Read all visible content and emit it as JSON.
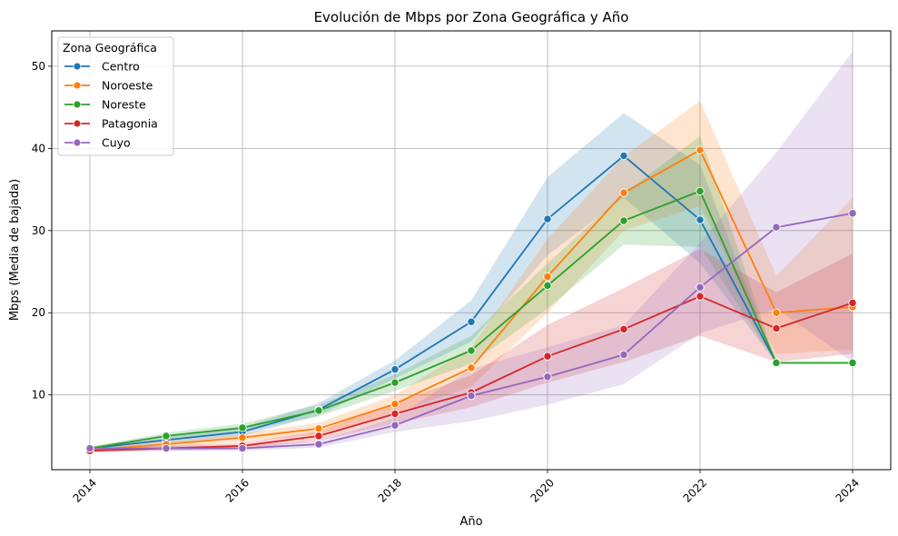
{
  "chart_data": {
    "type": "line",
    "title": "Evolución de Mbps por Zona Geográfica y Año",
    "xlabel": "Año",
    "ylabel": "Mbps (Media de bajada)",
    "xlim": [
      2013.5,
      2024.5
    ],
    "ylim": [
      0.9,
      54.3
    ],
    "xticks": [
      2014,
      2016,
      2018,
      2020,
      2022,
      2024
    ],
    "yticks": [
      10,
      20,
      30,
      40,
      50
    ],
    "grid": true,
    "legend": {
      "title": "Zona Geográfica",
      "placement": "top-left"
    },
    "x": [
      2014,
      2015,
      2016,
      2017,
      2018,
      2019,
      2020,
      2021,
      2022,
      2023,
      2024
    ],
    "series": [
      {
        "name": "Centro",
        "color": "#1f77b4",
        "values": [
          3.5,
          4.5,
          5.5,
          8.2,
          13.1,
          18.9,
          31.4,
          39.1,
          31.3,
          13.9,
          13.9
        ],
        "ci_low": [
          3.3,
          4.0,
          5.0,
          7.5,
          12.0,
          16.5,
          27.0,
          34.0,
          26.0,
          13.9,
          13.9
        ],
        "ci_high": [
          3.7,
          5.0,
          6.1,
          9.0,
          14.2,
          21.5,
          36.5,
          44.3,
          38.0,
          13.9,
          13.9
        ]
      },
      {
        "name": "Noroeste",
        "color": "#ff7f0e",
        "values": [
          3.3,
          4.0,
          4.8,
          5.9,
          8.9,
          13.3,
          24.4,
          34.6,
          39.8,
          20.0,
          20.7
        ],
        "ci_low": [
          3.1,
          3.6,
          4.3,
          5.2,
          7.8,
          11.0,
          20.0,
          30.0,
          33.0,
          15.0,
          15.5
        ],
        "ci_high": [
          3.5,
          4.4,
          5.3,
          6.6,
          10.0,
          15.8,
          29.0,
          39.0,
          45.8,
          24.5,
          34.0
        ]
      },
      {
        "name": "Noreste",
        "color": "#2ca02c",
        "values": [
          3.5,
          5.0,
          6.0,
          8.1,
          11.5,
          15.4,
          23.3,
          31.2,
          34.8,
          13.9,
          13.9
        ],
        "ci_low": [
          3.3,
          4.6,
          5.5,
          7.4,
          10.5,
          13.8,
          20.5,
          28.3,
          28.0,
          13.9,
          13.9
        ],
        "ci_high": [
          3.7,
          5.4,
          6.5,
          8.8,
          12.5,
          17.2,
          26.0,
          34.5,
          41.5,
          13.9,
          13.9
        ]
      },
      {
        "name": "Patagonia",
        "color": "#d62728",
        "values": [
          3.2,
          3.5,
          3.8,
          5.0,
          7.7,
          10.3,
          14.7,
          18.0,
          22.0,
          18.1,
          21.2
        ],
        "ci_low": [
          3.0,
          3.2,
          3.4,
          4.4,
          6.5,
          8.5,
          11.5,
          14.0,
          17.2,
          14.0,
          15.0
        ],
        "ci_high": [
          3.4,
          3.8,
          4.2,
          5.6,
          9.0,
          12.4,
          18.5,
          23.0,
          27.8,
          22.5,
          27.2
        ]
      },
      {
        "name": "Cuyo",
        "color": "#9467bd",
        "values": [
          3.5,
          3.5,
          3.5,
          4.0,
          6.3,
          9.9,
          12.2,
          14.9,
          23.1,
          30.4,
          32.1
        ],
        "ci_low": [
          3.3,
          3.2,
          3.2,
          3.6,
          5.5,
          6.8,
          8.8,
          11.3,
          17.5,
          20.5,
          14.0
        ],
        "ci_high": [
          3.7,
          3.8,
          3.8,
          4.4,
          7.2,
          13.2,
          15.8,
          18.5,
          28.5,
          39.5,
          51.8
        ]
      }
    ]
  }
}
